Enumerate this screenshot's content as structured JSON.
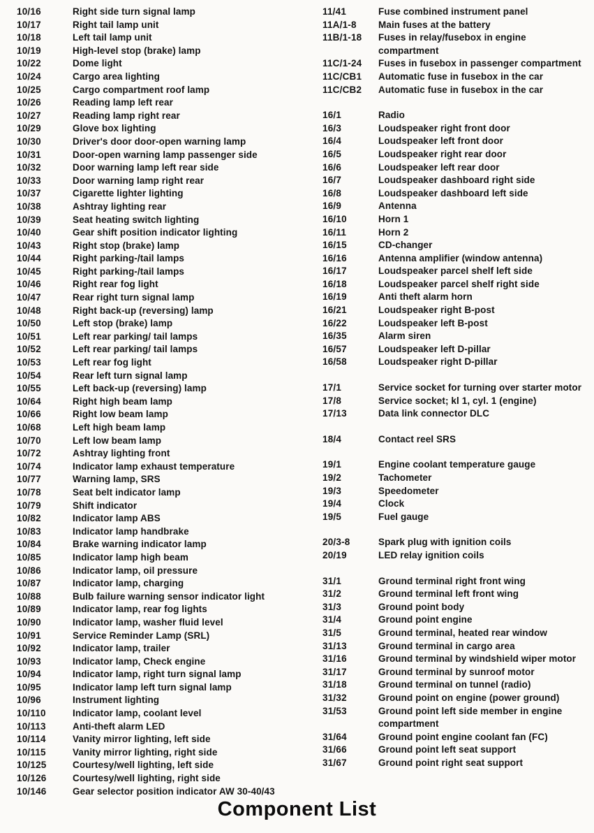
{
  "title": "Component List",
  "left_column": {
    "entries": [
      {
        "code": "10/16",
        "description": "Right side turn signal lamp"
      },
      {
        "code": "10/17",
        "description": "Right tail lamp unit"
      },
      {
        "code": "10/18",
        "description": "Left tail lamp unit"
      },
      {
        "code": "10/19",
        "description": "High-level stop (brake) lamp"
      },
      {
        "code": "10/22",
        "description": "Dome light"
      },
      {
        "code": "10/24",
        "description": "Cargo area lighting"
      },
      {
        "code": "10/25",
        "description": "Cargo compartment roof lamp"
      },
      {
        "code": "10/26",
        "description": "Reading lamp left rear"
      },
      {
        "code": "10/27",
        "description": "Reading lamp right rear"
      },
      {
        "code": "10/29",
        "description": "Glove box lighting"
      },
      {
        "code": "10/30",
        "description": "Driver's door door-open warning lamp"
      },
      {
        "code": "10/31",
        "description": "Door-open warning lamp passenger side"
      },
      {
        "code": "10/32",
        "description": "Door warning lamp left rear side"
      },
      {
        "code": "10/33",
        "description": "Door warning lamp right rear"
      },
      {
        "code": "10/37",
        "description": "Cigarette lighter lighting"
      },
      {
        "code": "10/38",
        "description": "Ashtray lighting rear"
      },
      {
        "code": "10/39",
        "description": "Seat heating switch lighting"
      },
      {
        "code": "10/40",
        "description": "Gear shift position indicator lighting"
      },
      {
        "code": "10/43",
        "description": "Right stop (brake) lamp"
      },
      {
        "code": "10/44",
        "description": "Right parking-/tail lamps"
      },
      {
        "code": "10/45",
        "description": "Right parking-/tail lamps"
      },
      {
        "code": "10/46",
        "description": "Right rear fog light"
      },
      {
        "code": "10/47",
        "description": "Rear right turn signal lamp"
      },
      {
        "code": "10/48",
        "description": "Right back-up (reversing) lamp"
      },
      {
        "code": "10/50",
        "description": "Left stop (brake) lamp"
      },
      {
        "code": "10/51",
        "description": "Left rear parking/ tail lamps"
      },
      {
        "code": "10/52",
        "description": "Left rear parking/ tail lamps"
      },
      {
        "code": "10/53",
        "description": "Left rear fog light"
      },
      {
        "code": "10/54",
        "description": "Rear left turn signal lamp"
      },
      {
        "code": "10/55",
        "description": "Left back-up (reversing) lamp"
      },
      {
        "code": "10/64",
        "description": "Right high beam lamp"
      },
      {
        "code": "10/66",
        "description": "Right low beam lamp"
      },
      {
        "code": "10/68",
        "description": "Left high beam lamp"
      },
      {
        "code": "10/70",
        "description": "Left low beam lamp"
      },
      {
        "code": "10/72",
        "description": "Ashtray lighting front"
      },
      {
        "code": "10/74",
        "description": "Indicator lamp exhaust temperature"
      },
      {
        "code": "10/77",
        "description": "Warning lamp, SRS"
      },
      {
        "code": "10/78",
        "description": "Seat belt indicator lamp"
      },
      {
        "code": "10/79",
        "description": "Shift indicator"
      },
      {
        "code": "10/82",
        "description": "Indicator lamp ABS"
      },
      {
        "code": "10/83",
        "description": "Indicator lamp handbrake"
      },
      {
        "code": "10/84",
        "description": "Brake warning indicator lamp"
      },
      {
        "code": "10/85",
        "description": "Indicator lamp high beam"
      },
      {
        "code": "10/86",
        "description": "Indicator lamp, oil pressure"
      },
      {
        "code": "10/87",
        "description": "Indicator lamp, charging"
      },
      {
        "code": "10/88",
        "description": "Bulb failure warning sensor indicator light"
      },
      {
        "code": "10/89",
        "description": "Indicator lamp, rear fog lights"
      },
      {
        "code": "10/90",
        "description": "Indicator lamp, washer fluid level"
      },
      {
        "code": "10/91",
        "description": "Service Reminder Lamp (SRL)"
      },
      {
        "code": "10/92",
        "description": "Indicator lamp, trailer"
      },
      {
        "code": "10/93",
        "description": "Indicator lamp, Check engine"
      },
      {
        "code": "10/94",
        "description": "Indicator lamp, right turn signal lamp"
      },
      {
        "code": "10/95",
        "description": "Indicator lamp left turn signal lamp"
      },
      {
        "code": "10/96",
        "description": "Instrument lighting"
      },
      {
        "code": "10/110",
        "description": "Indicator lamp, coolant level"
      },
      {
        "code": "10/113",
        "description": "Anti-theft alarm LED"
      },
      {
        "code": "10/114",
        "description": "Vanity mirror lighting, left side"
      },
      {
        "code": "10/115",
        "description": "Vanity mirror lighting, right side"
      },
      {
        "code": "10/125",
        "description": "Courtesy/well lighting, left side"
      },
      {
        "code": "10/126",
        "description": "Courtesy/well lighting, right side"
      },
      {
        "code": "10/146",
        "description": "Gear selector position indicator AW 30-40/43"
      }
    ]
  },
  "right_column": {
    "groups": [
      {
        "entries": [
          {
            "code": "11/41",
            "description": "Fuse combined instrument panel"
          },
          {
            "code": "11A/1-8",
            "description": "Main fuses at the battery"
          },
          {
            "code": "11B/1-18",
            "description": "Fuses in relay/fusebox in engine\ncompartment"
          },
          {
            "code": "11C/1-24",
            "description": "Fuses in fusebox in passenger compartment"
          },
          {
            "code": "11C/CB1",
            "description": "Automatic fuse in fusebox in the car"
          },
          {
            "code": "11C/CB2",
            "description": "Automatic fuse in fusebox in the car"
          }
        ]
      },
      {
        "entries": [
          {
            "code": "16/1",
            "description": "Radio"
          },
          {
            "code": "16/3",
            "description": "Loudspeaker right front door"
          },
          {
            "code": "16/4",
            "description": "Loudspeaker left front door"
          },
          {
            "code": "16/5",
            "description": "Loudspeaker right rear door"
          },
          {
            "code": "16/6",
            "description": "Loudspeaker left rear door"
          },
          {
            "code": "16/7",
            "description": "Loudspeaker dashboard right side"
          },
          {
            "code": "16/8",
            "description": "Loudspeaker dashboard left side"
          },
          {
            "code": "16/9",
            "description": "Antenna"
          },
          {
            "code": "16/10",
            "description": "Horn 1"
          },
          {
            "code": "16/11",
            "description": "Horn 2"
          },
          {
            "code": "16/15",
            "description": "CD-changer"
          },
          {
            "code": "16/16",
            "description": "Antenna amplifier (window antenna)"
          },
          {
            "code": "16/17",
            "description": "Loudspeaker parcel shelf left side"
          },
          {
            "code": "16/18",
            "description": "Loudspeaker parcel shelf right side"
          },
          {
            "code": "16/19",
            "description": "Anti theft alarm horn"
          },
          {
            "code": "16/21",
            "description": "Loudspeaker right B-post"
          },
          {
            "code": "16/22",
            "description": "Loudspeaker left B-post"
          },
          {
            "code": "16/35",
            "description": "Alarm siren"
          },
          {
            "code": "16/57",
            "description": "Loudspeaker left D-pillar"
          },
          {
            "code": "16/58",
            "description": "Loudspeaker right D-pillar"
          }
        ]
      },
      {
        "entries": [
          {
            "code": "17/1",
            "description": "Service socket for turning over starter motor"
          },
          {
            "code": "17/8",
            "description": "Service socket; kl 1, cyl. 1 (engine)"
          },
          {
            "code": "17/13",
            "description": "Data link connector DLC"
          }
        ]
      },
      {
        "entries": [
          {
            "code": "18/4",
            "description": "Contact reel SRS"
          }
        ]
      },
      {
        "entries": [
          {
            "code": "19/1",
            "description": "Engine coolant temperature gauge"
          },
          {
            "code": "19/2",
            "description": "Tachometer"
          },
          {
            "code": "19/3",
            "description": "Speedometer"
          },
          {
            "code": "19/4",
            "description": "Clock"
          },
          {
            "code": "19/5",
            "description": "Fuel gauge"
          }
        ]
      },
      {
        "entries": [
          {
            "code": "20/3-8",
            "description": "Spark plug with ignition coils"
          },
          {
            "code": "20/19",
            "description": "LED relay ignition coils"
          }
        ]
      },
      {
        "entries": [
          {
            "code": "31/1",
            "description": "Ground terminal right front wing"
          },
          {
            "code": "31/2",
            "description": "Ground terminal left front wing"
          },
          {
            "code": "31/3",
            "description": "Ground point body"
          },
          {
            "code": "31/4",
            "description": "Ground point engine"
          },
          {
            "code": "31/5",
            "description": "Ground terminal, heated rear window"
          },
          {
            "code": "31/13",
            "description": "Ground terminal in cargo area"
          },
          {
            "code": "31/16",
            "description": "Ground terminal by windshield wiper motor"
          },
          {
            "code": "31/17",
            "description": "Ground terminal by sunroof motor"
          },
          {
            "code": "31/18",
            "description": "Ground terminal on tunnel (radio)"
          },
          {
            "code": "31/32",
            "description": "Ground point on engine (power ground)"
          },
          {
            "code": "31/53",
            "description": "Ground point left side member in engine\ncompartment"
          },
          {
            "code": "31/64",
            "description": "Ground point engine coolant fan (FC)"
          },
          {
            "code": "31/66",
            "description": "Ground point left seat support"
          },
          {
            "code": "31/67",
            "description": "Ground point right seat support"
          }
        ]
      }
    ]
  }
}
